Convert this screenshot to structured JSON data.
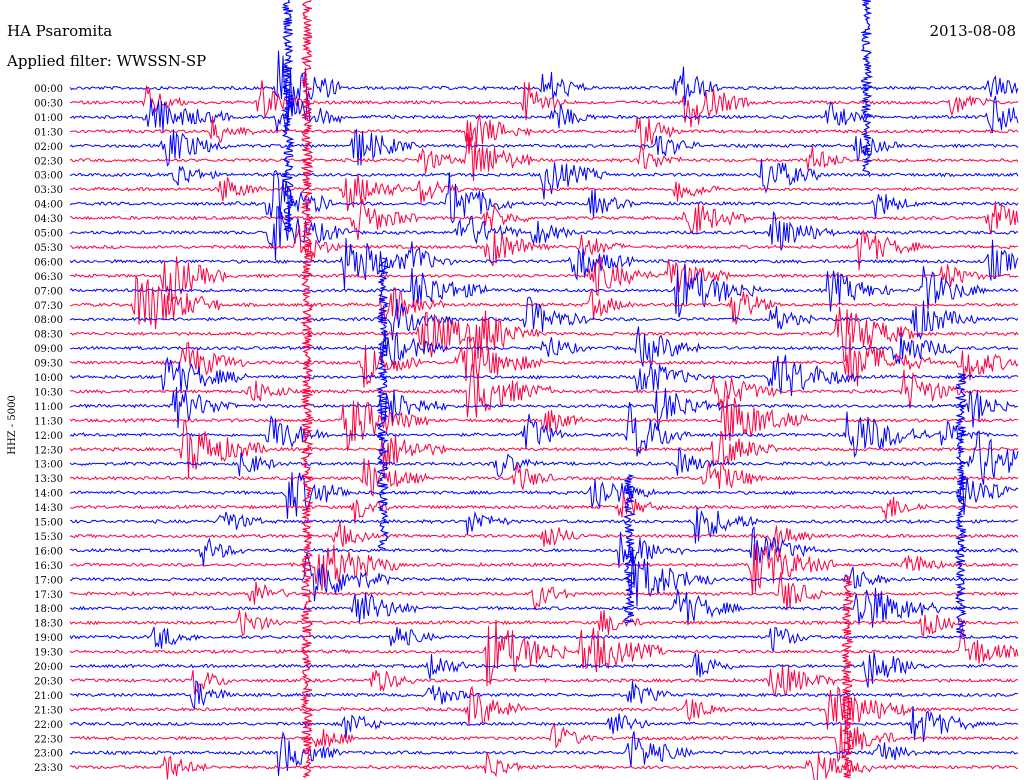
{
  "header": {
    "station": "HA Psaromita",
    "date": "2013-08-08",
    "filter": "Applied filter: WWSSN-SP"
  },
  "chart_data": {
    "type": "line",
    "title": "HA Psaromita",
    "ylabel": "HHZ - 5000",
    "traces": [
      "00:00",
      "00:30",
      "01:00",
      "01:30",
      "02:00",
      "02:30",
      "03:00",
      "03:30",
      "04:00",
      "04:30",
      "05:00",
      "05:30",
      "06:00",
      "06:30",
      "07:00",
      "07:30",
      "08:00",
      "08:30",
      "09:00",
      "09:30",
      "10:00",
      "10:30",
      "11:00",
      "11:30",
      "12:00",
      "12:30",
      "13:00",
      "13:30",
      "14:00",
      "14:30",
      "15:00",
      "15:30",
      "16:00",
      "16:30",
      "17:00",
      "17:30",
      "18:00",
      "18:30",
      "19:00",
      "19:30",
      "20:00",
      "20:30",
      "21:00",
      "21:30",
      "22:00",
      "22:30",
      "23:00",
      "23:30"
    ],
    "grid": false,
    "colors": {
      "even_trace": "#0000ff",
      "odd_trace": "#ff0040"
    },
    "events": [
      {
        "row": 0,
        "t": 0.22,
        "amp": 6,
        "dur": 0.03
      },
      {
        "row": 0,
        "t": 0.5,
        "amp": 3,
        "dur": 0.02
      },
      {
        "row": 0,
        "t": 0.64,
        "amp": 4,
        "dur": 0.02
      },
      {
        "row": 0,
        "t": 0.97,
        "amp": 2,
        "dur": 0.02
      },
      {
        "row": 1,
        "t": 0.08,
        "amp": 2,
        "dur": 0.02
      },
      {
        "row": 1,
        "t": 0.2,
        "amp": 3,
        "dur": 0.02
      },
      {
        "row": 1,
        "t": 0.48,
        "amp": 3,
        "dur": 0.02
      },
      {
        "row": 1,
        "t": 0.65,
        "amp": 4,
        "dur": 0.03
      },
      {
        "row": 1,
        "t": 0.93,
        "amp": 2,
        "dur": 0.02
      },
      {
        "row": 2,
        "t": 0.08,
        "amp": 3,
        "dur": 0.04
      },
      {
        "row": 2,
        "t": 0.22,
        "amp": 4,
        "dur": 0.03
      },
      {
        "row": 2,
        "t": 0.51,
        "amp": 2,
        "dur": 0.02
      },
      {
        "row": 2,
        "t": 0.8,
        "amp": 2,
        "dur": 0.02
      },
      {
        "row": 2,
        "t": 0.97,
        "amp": 3,
        "dur": 0.03
      },
      {
        "row": 3,
        "t": 0.15,
        "amp": 2,
        "dur": 0.02
      },
      {
        "row": 3,
        "t": 0.42,
        "amp": 3,
        "dur": 0.03
      },
      {
        "row": 3,
        "t": 0.6,
        "amp": 3,
        "dur": 0.02
      },
      {
        "row": 4,
        "t": 0.1,
        "amp": 3,
        "dur": 0.03
      },
      {
        "row": 4,
        "t": 0.3,
        "amp": 3,
        "dur": 0.03
      },
      {
        "row": 4,
        "t": 0.62,
        "amp": 2,
        "dur": 0.02
      },
      {
        "row": 4,
        "t": 0.83,
        "amp": 2,
        "dur": 0.02
      },
      {
        "row": 5,
        "t": 0.37,
        "amp": 2,
        "dur": 0.02
      },
      {
        "row": 5,
        "t": 0.42,
        "amp": 4,
        "dur": 0.03
      },
      {
        "row": 5,
        "t": 0.6,
        "amp": 2,
        "dur": 0.02
      },
      {
        "row": 5,
        "t": 0.78,
        "amp": 2,
        "dur": 0.02
      },
      {
        "row": 6,
        "t": 0.11,
        "amp": 2,
        "dur": 0.02
      },
      {
        "row": 6,
        "t": 0.5,
        "amp": 3,
        "dur": 0.03
      },
      {
        "row": 6,
        "t": 0.73,
        "amp": 3,
        "dur": 0.03
      },
      {
        "row": 7,
        "t": 0.16,
        "amp": 2,
        "dur": 0.02
      },
      {
        "row": 7,
        "t": 0.29,
        "amp": 3,
        "dur": 0.03
      },
      {
        "row": 7,
        "t": 0.37,
        "amp": 2,
        "dur": 0.02
      },
      {
        "row": 7,
        "t": 0.64,
        "amp": 2,
        "dur": 0.02
      },
      {
        "row": 8,
        "t": 0.21,
        "amp": 5,
        "dur": 0.03
      },
      {
        "row": 8,
        "t": 0.4,
        "amp": 4,
        "dur": 0.03
      },
      {
        "row": 8,
        "t": 0.55,
        "amp": 2,
        "dur": 0.02
      },
      {
        "row": 8,
        "t": 0.85,
        "amp": 2,
        "dur": 0.02
      },
      {
        "row": 9,
        "t": 0.3,
        "amp": 3,
        "dur": 0.03
      },
      {
        "row": 9,
        "t": 0.44,
        "amp": 2,
        "dur": 0.02
      },
      {
        "row": 9,
        "t": 0.65,
        "amp": 3,
        "dur": 0.03
      },
      {
        "row": 9,
        "t": 0.97,
        "amp": 3,
        "dur": 0.02
      },
      {
        "row": 10,
        "t": 0.21,
        "amp": 4,
        "dur": 0.04
      },
      {
        "row": 10,
        "t": 0.41,
        "amp": 3,
        "dur": 0.03
      },
      {
        "row": 10,
        "t": 0.49,
        "amp": 2,
        "dur": 0.02
      },
      {
        "row": 10,
        "t": 0.74,
        "amp": 3,
        "dur": 0.03
      },
      {
        "row": 11,
        "t": 0.24,
        "amp": 3,
        "dur": 0.02
      },
      {
        "row": 11,
        "t": 0.44,
        "amp": 3,
        "dur": 0.03
      },
      {
        "row": 11,
        "t": 0.54,
        "amp": 2,
        "dur": 0.02
      },
      {
        "row": 11,
        "t": 0.83,
        "amp": 3,
        "dur": 0.03
      },
      {
        "row": 12,
        "t": 0.29,
        "amp": 4,
        "dur": 0.04
      },
      {
        "row": 12,
        "t": 0.36,
        "amp": 2,
        "dur": 0.02
      },
      {
        "row": 12,
        "t": 0.53,
        "amp": 3,
        "dur": 0.03
      },
      {
        "row": 12,
        "t": 0.97,
        "amp": 3,
        "dur": 0.02
      },
      {
        "row": 13,
        "t": 0.1,
        "amp": 4,
        "dur": 0.03
      },
      {
        "row": 13,
        "t": 0.55,
        "amp": 3,
        "dur": 0.03
      },
      {
        "row": 13,
        "t": 0.63,
        "amp": 3,
        "dur": 0.03
      },
      {
        "row": 13,
        "t": 0.92,
        "amp": 2,
        "dur": 0.02
      },
      {
        "row": 14,
        "t": 0.36,
        "amp": 3,
        "dur": 0.04
      },
      {
        "row": 14,
        "t": 0.64,
        "amp": 4,
        "dur": 0.04
      },
      {
        "row": 14,
        "t": 0.8,
        "amp": 3,
        "dur": 0.03
      },
      {
        "row": 14,
        "t": 0.9,
        "amp": 3,
        "dur": 0.03
      },
      {
        "row": 15,
        "t": 0.07,
        "amp": 5,
        "dur": 0.04
      },
      {
        "row": 15,
        "t": 0.33,
        "amp": 3,
        "dur": 0.03
      },
      {
        "row": 15,
        "t": 0.55,
        "amp": 2,
        "dur": 0.02
      },
      {
        "row": 15,
        "t": 0.7,
        "amp": 3,
        "dur": 0.02
      },
      {
        "row": 16,
        "t": 0.34,
        "amp": 3,
        "dur": 0.03
      },
      {
        "row": 16,
        "t": 0.48,
        "amp": 3,
        "dur": 0.03
      },
      {
        "row": 16,
        "t": 0.74,
        "amp": 2,
        "dur": 0.02
      },
      {
        "row": 16,
        "t": 0.89,
        "amp": 3,
        "dur": 0.03
      },
      {
        "row": 17,
        "t": 0.37,
        "amp": 4,
        "dur": 0.04
      },
      {
        "row": 17,
        "t": 0.43,
        "amp": 3,
        "dur": 0.03
      },
      {
        "row": 17,
        "t": 0.81,
        "amp": 4,
        "dur": 0.04
      },
      {
        "row": 18,
        "t": 0.33,
        "amp": 3,
        "dur": 0.03
      },
      {
        "row": 18,
        "t": 0.5,
        "amp": 2,
        "dur": 0.02
      },
      {
        "row": 18,
        "t": 0.6,
        "amp": 3,
        "dur": 0.03
      },
      {
        "row": 18,
        "t": 0.87,
        "amp": 3,
        "dur": 0.03
      },
      {
        "row": 19,
        "t": 0.12,
        "amp": 3,
        "dur": 0.03
      },
      {
        "row": 19,
        "t": 0.31,
        "amp": 3,
        "dur": 0.03
      },
      {
        "row": 19,
        "t": 0.41,
        "amp": 4,
        "dur": 0.04
      },
      {
        "row": 19,
        "t": 0.82,
        "amp": 4,
        "dur": 0.04
      },
      {
        "row": 19,
        "t": 0.94,
        "amp": 3,
        "dur": 0.03
      },
      {
        "row": 20,
        "t": 0.1,
        "amp": 3,
        "dur": 0.04
      },
      {
        "row": 20,
        "t": 0.6,
        "amp": 3,
        "dur": 0.03
      },
      {
        "row": 20,
        "t": 0.74,
        "amp": 4,
        "dur": 0.04
      },
      {
        "row": 21,
        "t": 0.19,
        "amp": 2,
        "dur": 0.02
      },
      {
        "row": 21,
        "t": 0.42,
        "amp": 4,
        "dur": 0.04
      },
      {
        "row": 21,
        "t": 0.68,
        "amp": 3,
        "dur": 0.03
      },
      {
        "row": 21,
        "t": 0.88,
        "amp": 3,
        "dur": 0.03
      },
      {
        "row": 22,
        "t": 0.11,
        "amp": 3,
        "dur": 0.03
      },
      {
        "row": 22,
        "t": 0.33,
        "amp": 3,
        "dur": 0.03
      },
      {
        "row": 22,
        "t": 0.62,
        "amp": 3,
        "dur": 0.03
      },
      {
        "row": 22,
        "t": 0.95,
        "amp": 3,
        "dur": 0.02
      },
      {
        "row": 23,
        "t": 0.29,
        "amp": 4,
        "dur": 0.04
      },
      {
        "row": 23,
        "t": 0.5,
        "amp": 2,
        "dur": 0.02
      },
      {
        "row": 23,
        "t": 0.69,
        "amp": 4,
        "dur": 0.04
      },
      {
        "row": 24,
        "t": 0.21,
        "amp": 3,
        "dur": 0.03
      },
      {
        "row": 24,
        "t": 0.48,
        "amp": 3,
        "dur": 0.02
      },
      {
        "row": 24,
        "t": 0.59,
        "amp": 4,
        "dur": 0.03
      },
      {
        "row": 24,
        "t": 0.82,
        "amp": 4,
        "dur": 0.04
      },
      {
        "row": 24,
        "t": 0.92,
        "amp": 2,
        "dur": 0.02
      },
      {
        "row": 25,
        "t": 0.12,
        "amp": 4,
        "dur": 0.04
      },
      {
        "row": 25,
        "t": 0.33,
        "amp": 3,
        "dur": 0.03
      },
      {
        "row": 25,
        "t": 0.68,
        "amp": 3,
        "dur": 0.03
      },
      {
        "row": 26,
        "t": 0.18,
        "amp": 2,
        "dur": 0.02
      },
      {
        "row": 26,
        "t": 0.45,
        "amp": 2,
        "dur": 0.02
      },
      {
        "row": 26,
        "t": 0.64,
        "amp": 2,
        "dur": 0.02
      },
      {
        "row": 26,
        "t": 0.95,
        "amp": 5,
        "dur": 0.04
      },
      {
        "row": 27,
        "t": 0.31,
        "amp": 3,
        "dur": 0.03
      },
      {
        "row": 27,
        "t": 0.47,
        "amp": 2,
        "dur": 0.02
      },
      {
        "row": 27,
        "t": 0.67,
        "amp": 3,
        "dur": 0.03
      },
      {
        "row": 28,
        "t": 0.23,
        "amp": 4,
        "dur": 0.03
      },
      {
        "row": 28,
        "t": 0.55,
        "amp": 3,
        "dur": 0.03
      },
      {
        "row": 28,
        "t": 0.94,
        "amp": 3,
        "dur": 0.03
      },
      {
        "row": 29,
        "t": 0.3,
        "amp": 2,
        "dur": 0.02
      },
      {
        "row": 29,
        "t": 0.58,
        "amp": 2,
        "dur": 0.02
      },
      {
        "row": 29,
        "t": 0.86,
        "amp": 2,
        "dur": 0.02
      },
      {
        "row": 30,
        "t": 0.16,
        "amp": 2,
        "dur": 0.02
      },
      {
        "row": 30,
        "t": 0.42,
        "amp": 2,
        "dur": 0.02
      },
      {
        "row": 30,
        "t": 0.66,
        "amp": 3,
        "dur": 0.03
      },
      {
        "row": 31,
        "t": 0.28,
        "amp": 2,
        "dur": 0.02
      },
      {
        "row": 31,
        "t": 0.5,
        "amp": 2,
        "dur": 0.02
      },
      {
        "row": 31,
        "t": 0.74,
        "amp": 2,
        "dur": 0.02
      },
      {
        "row": 32,
        "t": 0.14,
        "amp": 2,
        "dur": 0.02
      },
      {
        "row": 32,
        "t": 0.58,
        "amp": 3,
        "dur": 0.03
      },
      {
        "row": 32,
        "t": 0.72,
        "amp": 3,
        "dur": 0.03
      },
      {
        "row": 33,
        "t": 0.26,
        "amp": 4,
        "dur": 0.04
      },
      {
        "row": 33,
        "t": 0.72,
        "amp": 4,
        "dur": 0.04
      },
      {
        "row": 33,
        "t": 0.88,
        "amp": 2,
        "dur": 0.02
      },
      {
        "row": 34,
        "t": 0.25,
        "amp": 4,
        "dur": 0.04
      },
      {
        "row": 34,
        "t": 0.59,
        "amp": 4,
        "dur": 0.04
      },
      {
        "row": 34,
        "t": 0.82,
        "amp": 2,
        "dur": 0.02
      },
      {
        "row": 35,
        "t": 0.19,
        "amp": 2,
        "dur": 0.02
      },
      {
        "row": 35,
        "t": 0.49,
        "amp": 2,
        "dur": 0.02
      },
      {
        "row": 35,
        "t": 0.75,
        "amp": 3,
        "dur": 0.02
      },
      {
        "row": 36,
        "t": 0.3,
        "amp": 3,
        "dur": 0.03
      },
      {
        "row": 36,
        "t": 0.64,
        "amp": 3,
        "dur": 0.03
      },
      {
        "row": 36,
        "t": 0.83,
        "amp": 4,
        "dur": 0.04
      },
      {
        "row": 37,
        "t": 0.18,
        "amp": 2,
        "dur": 0.02
      },
      {
        "row": 37,
        "t": 0.56,
        "amp": 2,
        "dur": 0.02
      },
      {
        "row": 37,
        "t": 0.9,
        "amp": 2,
        "dur": 0.02
      },
      {
        "row": 38,
        "t": 0.09,
        "amp": 2,
        "dur": 0.02
      },
      {
        "row": 38,
        "t": 0.34,
        "amp": 2,
        "dur": 0.02
      },
      {
        "row": 38,
        "t": 0.74,
        "amp": 2,
        "dur": 0.02
      },
      {
        "row": 39,
        "t": 0.44,
        "amp": 5,
        "dur": 0.04
      },
      {
        "row": 39,
        "t": 0.54,
        "amp": 4,
        "dur": 0.04
      },
      {
        "row": 39,
        "t": 0.94,
        "amp": 3,
        "dur": 0.03
      },
      {
        "row": 40,
        "t": 0.38,
        "amp": 2,
        "dur": 0.02
      },
      {
        "row": 40,
        "t": 0.66,
        "amp": 2,
        "dur": 0.02
      },
      {
        "row": 40,
        "t": 0.84,
        "amp": 3,
        "dur": 0.03
      },
      {
        "row": 41,
        "t": 0.13,
        "amp": 2,
        "dur": 0.02
      },
      {
        "row": 41,
        "t": 0.32,
        "amp": 2,
        "dur": 0.02
      },
      {
        "row": 41,
        "t": 0.74,
        "amp": 3,
        "dur": 0.03
      },
      {
        "row": 42,
        "t": 0.13,
        "amp": 2,
        "dur": 0.02
      },
      {
        "row": 42,
        "t": 0.38,
        "amp": 2,
        "dur": 0.02
      },
      {
        "row": 42,
        "t": 0.59,
        "amp": 2,
        "dur": 0.02
      },
      {
        "row": 43,
        "t": 0.42,
        "amp": 3,
        "dur": 0.03
      },
      {
        "row": 43,
        "t": 0.65,
        "amp": 2,
        "dur": 0.02
      },
      {
        "row": 43,
        "t": 0.8,
        "amp": 4,
        "dur": 0.04
      },
      {
        "row": 44,
        "t": 0.29,
        "amp": 2,
        "dur": 0.02
      },
      {
        "row": 44,
        "t": 0.57,
        "amp": 2,
        "dur": 0.02
      },
      {
        "row": 44,
        "t": 0.89,
        "amp": 3,
        "dur": 0.03
      },
      {
        "row": 45,
        "t": 0.26,
        "amp": 2,
        "dur": 0.02
      },
      {
        "row": 45,
        "t": 0.51,
        "amp": 2,
        "dur": 0.02
      },
      {
        "row": 45,
        "t": 0.81,
        "amp": 3,
        "dur": 0.03
      },
      {
        "row": 46,
        "t": 0.22,
        "amp": 3,
        "dur": 0.03
      },
      {
        "row": 46,
        "t": 0.59,
        "amp": 3,
        "dur": 0.03
      },
      {
        "row": 46,
        "t": 0.85,
        "amp": 2,
        "dur": 0.02
      },
      {
        "row": 47,
        "t": 0.1,
        "amp": 2,
        "dur": 0.02
      },
      {
        "row": 47,
        "t": 0.44,
        "amp": 2,
        "dur": 0.02
      },
      {
        "row": 47,
        "t": 0.78,
        "amp": 3,
        "dur": 0.03
      }
    ],
    "big_events": [
      {
        "t": 0.23,
        "row": 0,
        "span": 10,
        "color": "#0000ff"
      },
      {
        "t": 0.25,
        "row": 0,
        "span": 48,
        "color": "#ff0040"
      },
      {
        "t": 0.33,
        "row": 18,
        "span": 14,
        "color": "#0000ff"
      },
      {
        "t": 0.82,
        "row": 40,
        "span": 8,
        "color": "#ff0040"
      },
      {
        "t": 0.84,
        "row": 0,
        "span": 6,
        "color": "#0000ff"
      },
      {
        "t": 0.94,
        "row": 26,
        "span": 12,
        "color": "#0000ff"
      },
      {
        "t": 0.59,
        "row": 33,
        "span": 4,
        "color": "#0000ff"
      }
    ]
  }
}
